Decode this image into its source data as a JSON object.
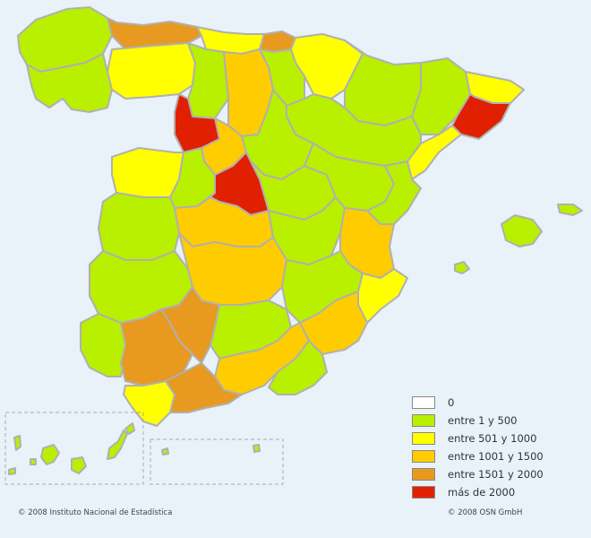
{
  "legend": {
    "items": [
      {
        "label": "0",
        "color": "#ffffff"
      },
      {
        "label": "entre 1 y 500",
        "color": "#b8f000"
      },
      {
        "label": "entre 501 y 1000",
        "color": "#ffff00"
      },
      {
        "label": "entre 1001 y 1500",
        "color": "#ffcc00"
      },
      {
        "label": "entre 1501 y 2000",
        "color": "#e8991f"
      },
      {
        "label": "más de 2000",
        "color": "#e02000"
      }
    ]
  },
  "credits": {
    "left": "© 2008 Instituto Nacional de Estadística",
    "right": "© 2008 OSN GmbH"
  },
  "colors": {
    "background": "#e9f1f9",
    "border": "#b0b0b0",
    "inset_frame": "#aaaaaa"
  }
}
